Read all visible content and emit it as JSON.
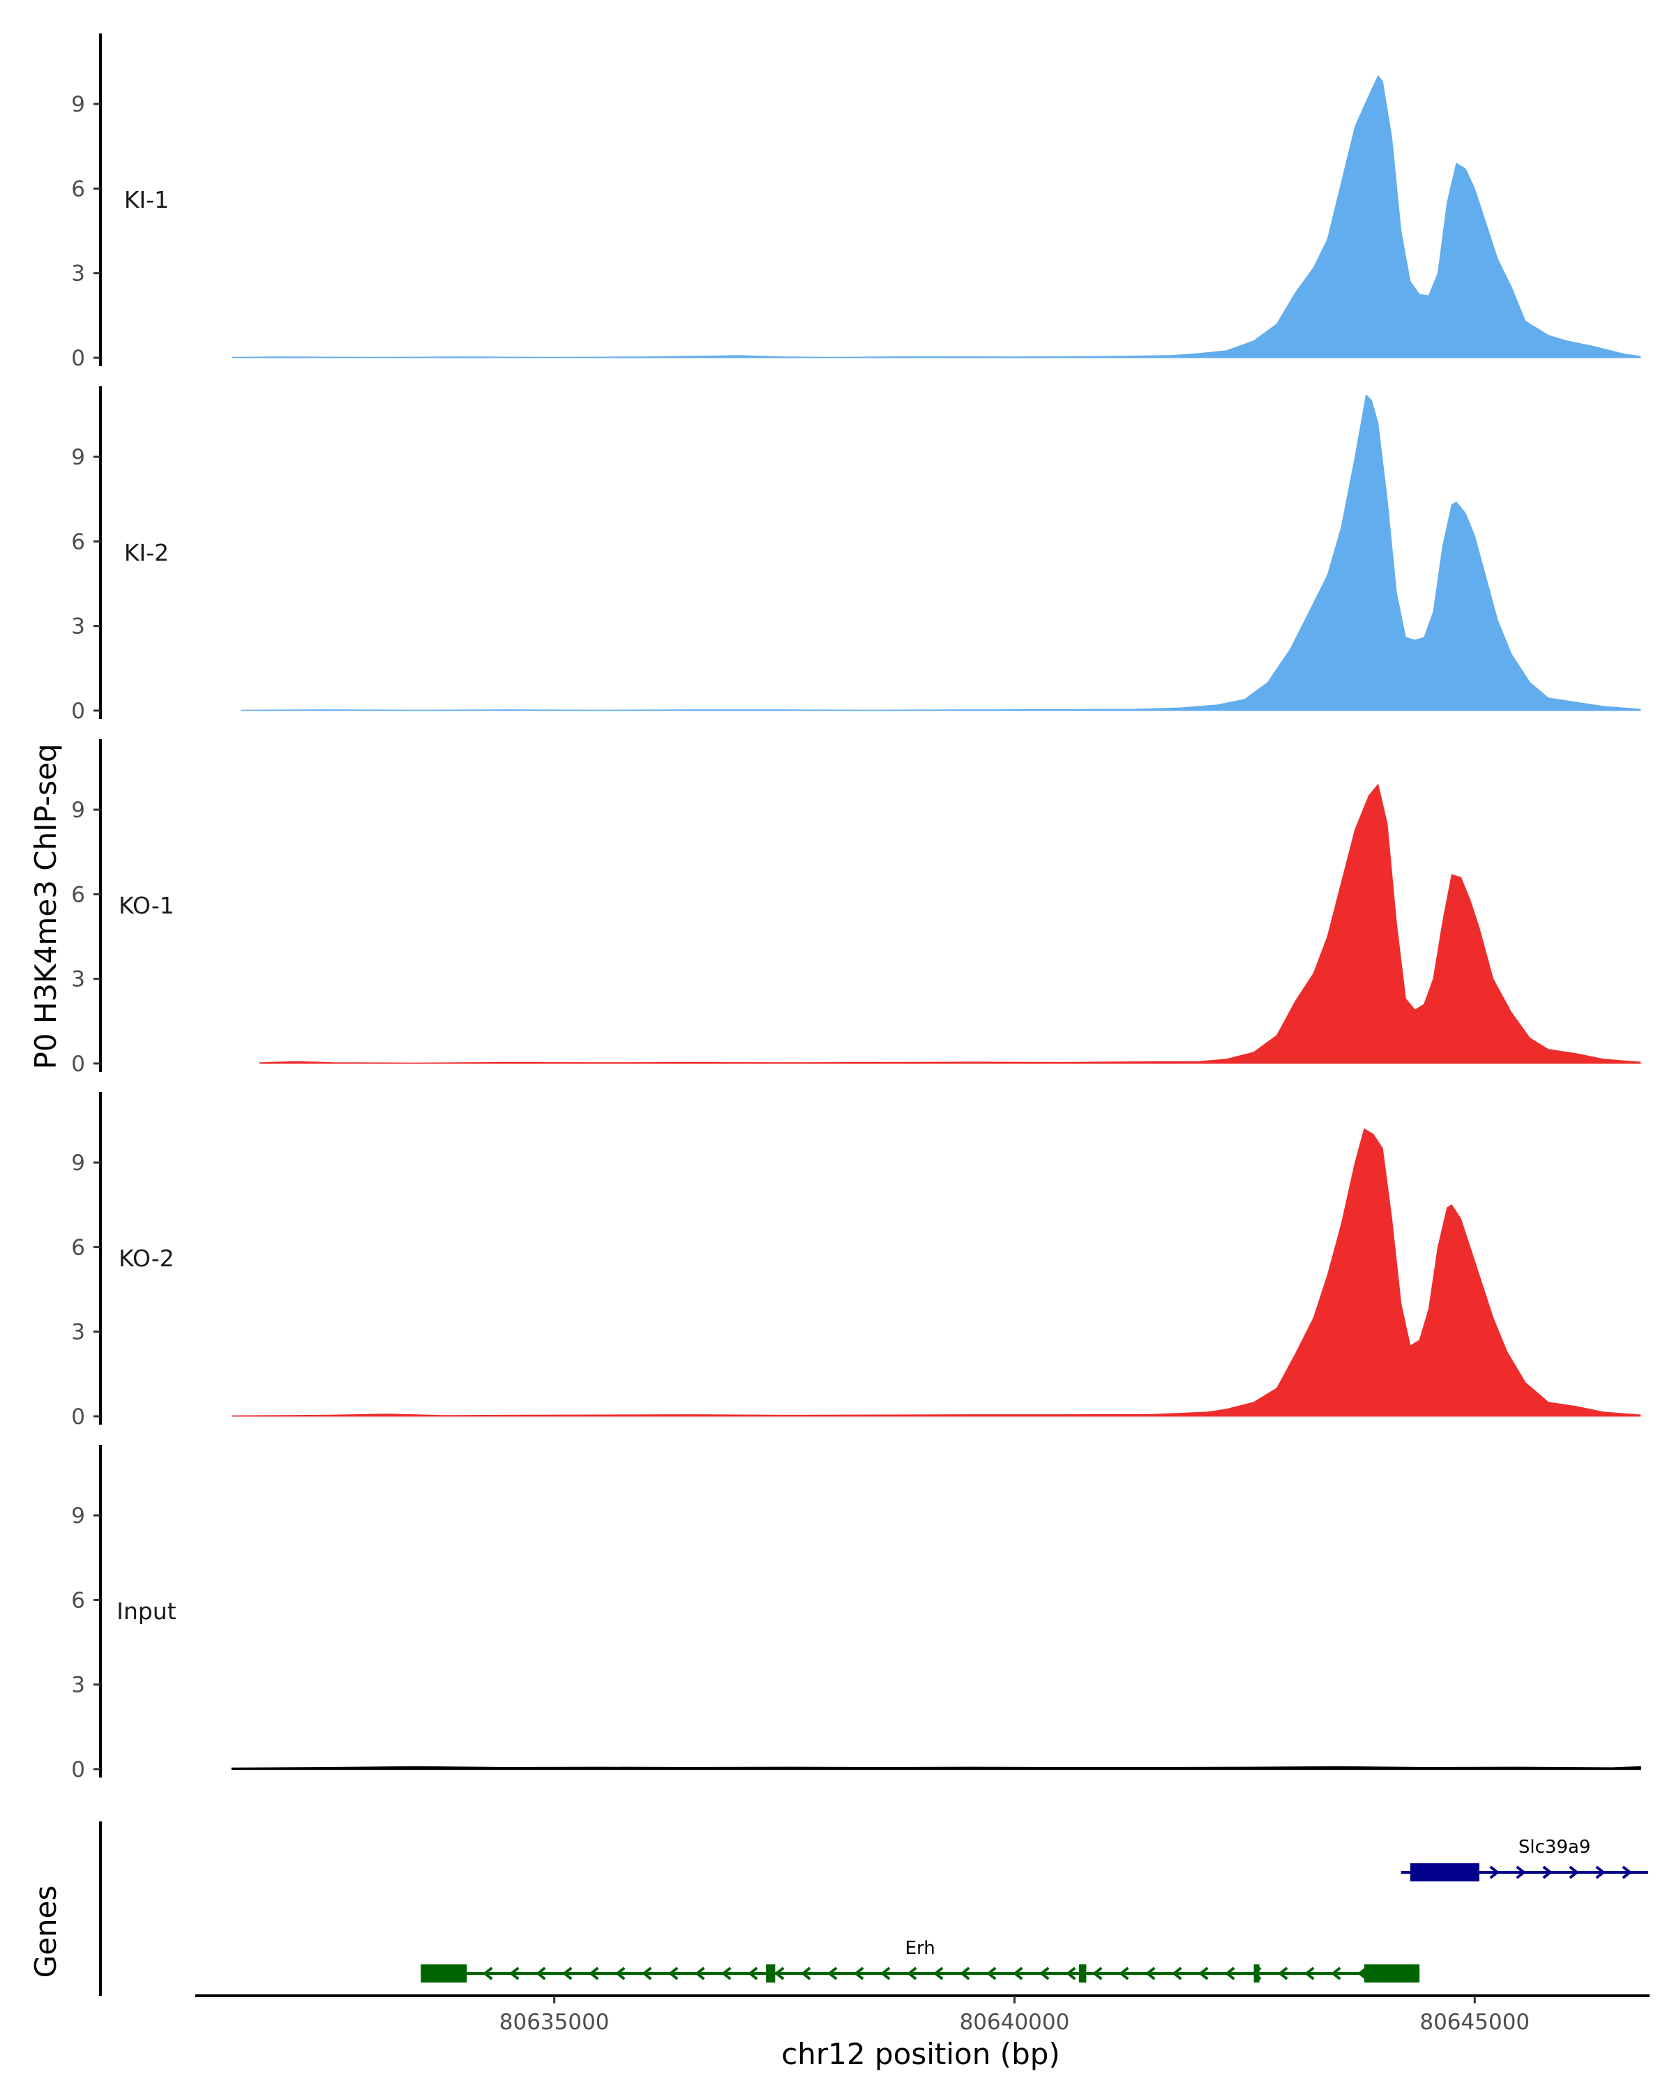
{
  "chart_data": {
    "type": "area",
    "title": "",
    "xlabel": "chr12 position (bp)",
    "ylabel": "P0 H3K4me3 ChIP-seq",
    "genes_label": "Genes",
    "xlim": [
      80631100,
      80646900
    ],
    "ylim": [
      0,
      11.5
    ],
    "x_ticks": [
      80635000,
      80640000,
      80645000
    ],
    "x_tick_labels": [
      "80635000",
      "80640000",
      "80645000"
    ],
    "y_ticks": [
      0,
      3,
      6,
      9
    ],
    "y_tick_labels": [
      "0",
      "3",
      "6",
      "9"
    ],
    "colors": {
      "KI": "#62aded",
      "KO": "#ee2c2c",
      "Input": "#000000",
      "gene_minus": "#006400",
      "gene_plus": "#00008b",
      "axis": "#000000"
    },
    "series": [
      {
        "name": "KI-1",
        "color": "#62aded",
        "points": [
          [
            80631500,
            0.02
          ],
          [
            80632000,
            0.03
          ],
          [
            80633000,
            0.02
          ],
          [
            80634000,
            0.03
          ],
          [
            80635000,
            0.02
          ],
          [
            80636000,
            0.03
          ],
          [
            80637000,
            0.08
          ],
          [
            80637500,
            0.03
          ],
          [
            80638000,
            0.02
          ],
          [
            80639000,
            0.04
          ],
          [
            80640000,
            0.03
          ],
          [
            80641000,
            0.05
          ],
          [
            80641700,
            0.08
          ],
          [
            80642000,
            0.15
          ],
          [
            80642300,
            0.25
          ],
          [
            80642600,
            0.6
          ],
          [
            80642850,
            1.2
          ],
          [
            80643050,
            2.3
          ],
          [
            80643250,
            3.2
          ],
          [
            80643400,
            4.2
          ],
          [
            80643550,
            6.2
          ],
          [
            80643700,
            8.2
          ],
          [
            80643850,
            9.3
          ],
          [
            80643950,
            10.0
          ],
          [
            80644000,
            9.8
          ],
          [
            80644100,
            7.8
          ],
          [
            80644200,
            4.5
          ],
          [
            80644300,
            2.7
          ],
          [
            80644400,
            2.25
          ],
          [
            80644500,
            2.2
          ],
          [
            80644600,
            3.0
          ],
          [
            80644700,
            5.5
          ],
          [
            80644800,
            6.9
          ],
          [
            80644900,
            6.7
          ],
          [
            80645000,
            6.0
          ],
          [
            80645100,
            5.0
          ],
          [
            80645250,
            3.5
          ],
          [
            80645400,
            2.5
          ],
          [
            80645550,
            1.3
          ],
          [
            80645800,
            0.8
          ],
          [
            80646000,
            0.6
          ],
          [
            80646300,
            0.4
          ],
          [
            80646600,
            0.15
          ],
          [
            80646800,
            0.05
          ]
        ]
      },
      {
        "name": "KI-2",
        "color": "#62aded",
        "points": [
          [
            80631600,
            0.02
          ],
          [
            80632500,
            0.03
          ],
          [
            80633500,
            0.02
          ],
          [
            80634500,
            0.03
          ],
          [
            80635500,
            0.02
          ],
          [
            80636500,
            0.03
          ],
          [
            80637500,
            0.03
          ],
          [
            80638500,
            0.02
          ],
          [
            80639500,
            0.03
          ],
          [
            80640500,
            0.04
          ],
          [
            80641300,
            0.05
          ],
          [
            80641800,
            0.1
          ],
          [
            80642200,
            0.2
          ],
          [
            80642500,
            0.4
          ],
          [
            80642750,
            1.0
          ],
          [
            80643000,
            2.2
          ],
          [
            80643200,
            3.5
          ],
          [
            80643400,
            4.8
          ],
          [
            80643550,
            6.5
          ],
          [
            80643700,
            9.0
          ],
          [
            80643820,
            11.2
          ],
          [
            80643880,
            11.0
          ],
          [
            80643950,
            10.2
          ],
          [
            80644050,
            7.5
          ],
          [
            80644150,
            4.2
          ],
          [
            80644250,
            2.6
          ],
          [
            80644350,
            2.5
          ],
          [
            80644450,
            2.6
          ],
          [
            80644550,
            3.5
          ],
          [
            80644650,
            5.8
          ],
          [
            80644750,
            7.3
          ],
          [
            80644800,
            7.4
          ],
          [
            80644900,
            7.0
          ],
          [
            80645000,
            6.2
          ],
          [
            80645100,
            5.0
          ],
          [
            80645250,
            3.2
          ],
          [
            80645400,
            2.0
          ],
          [
            80645600,
            1.0
          ],
          [
            80645800,
            0.45
          ],
          [
            80646100,
            0.3
          ],
          [
            80646400,
            0.15
          ],
          [
            80646800,
            0.05
          ]
        ]
      },
      {
        "name": "KO-1",
        "color": "#ee2c2c",
        "points": [
          [
            80631800,
            0.03
          ],
          [
            80632200,
            0.07
          ],
          [
            80632600,
            0.03
          ],
          [
            80633500,
            0.02
          ],
          [
            80634500,
            0.04
          ],
          [
            80635500,
            0.03
          ],
          [
            80636500,
            0.04
          ],
          [
            80637500,
            0.03
          ],
          [
            80638500,
            0.04
          ],
          [
            80639500,
            0.05
          ],
          [
            80640500,
            0.04
          ],
          [
            80641300,
            0.06
          ],
          [
            80642000,
            0.07
          ],
          [
            80642300,
            0.15
          ],
          [
            80642600,
            0.4
          ],
          [
            80642850,
            1.0
          ],
          [
            80643050,
            2.2
          ],
          [
            80643250,
            3.2
          ],
          [
            80643400,
            4.5
          ],
          [
            80643550,
            6.4
          ],
          [
            80643700,
            8.3
          ],
          [
            80643850,
            9.5
          ],
          [
            80643950,
            9.9
          ],
          [
            80644050,
            8.5
          ],
          [
            80644150,
            5.0
          ],
          [
            80644250,
            2.3
          ],
          [
            80644350,
            1.9
          ],
          [
            80644450,
            2.1
          ],
          [
            80644550,
            3.0
          ],
          [
            80644650,
            5.0
          ],
          [
            80644750,
            6.7
          ],
          [
            80644850,
            6.6
          ],
          [
            80644950,
            5.8
          ],
          [
            80645050,
            4.8
          ],
          [
            80645200,
            3.0
          ],
          [
            80645400,
            1.8
          ],
          [
            80645600,
            0.9
          ],
          [
            80645800,
            0.5
          ],
          [
            80646100,
            0.35
          ],
          [
            80646400,
            0.15
          ],
          [
            80646800,
            0.05
          ]
        ]
      },
      {
        "name": "KO-2",
        "color": "#ee2c2c",
        "points": [
          [
            80631500,
            0.02
          ],
          [
            80632500,
            0.04
          ],
          [
            80633200,
            0.08
          ],
          [
            80633800,
            0.03
          ],
          [
            80634500,
            0.04
          ],
          [
            80635500,
            0.05
          ],
          [
            80636500,
            0.06
          ],
          [
            80637500,
            0.04
          ],
          [
            80638500,
            0.05
          ],
          [
            80639500,
            0.06
          ],
          [
            80640500,
            0.06
          ],
          [
            80641500,
            0.07
          ],
          [
            80642100,
            0.15
          ],
          [
            80642300,
            0.25
          ],
          [
            80642600,
            0.5
          ],
          [
            80642850,
            1.0
          ],
          [
            80643050,
            2.2
          ],
          [
            80643250,
            3.5
          ],
          [
            80643400,
            5.0
          ],
          [
            80643550,
            6.8
          ],
          [
            80643700,
            9.0
          ],
          [
            80643800,
            10.2
          ],
          [
            80643900,
            10.0
          ],
          [
            80644000,
            9.5
          ],
          [
            80644100,
            7.0
          ],
          [
            80644200,
            4.0
          ],
          [
            80644300,
            2.5
          ],
          [
            80644400,
            2.7
          ],
          [
            80644500,
            3.8
          ],
          [
            80644600,
            6.0
          ],
          [
            80644700,
            7.4
          ],
          [
            80644750,
            7.5
          ],
          [
            80644850,
            7.0
          ],
          [
            80644950,
            6.0
          ],
          [
            80645050,
            5.0
          ],
          [
            80645200,
            3.5
          ],
          [
            80645350,
            2.3
          ],
          [
            80645550,
            1.2
          ],
          [
            80645800,
            0.5
          ],
          [
            80646100,
            0.35
          ],
          [
            80646400,
            0.15
          ],
          [
            80646800,
            0.05
          ]
        ]
      },
      {
        "name": "Input",
        "color": "#000000",
        "points": [
          [
            80631500,
            0.03
          ],
          [
            80632500,
            0.05
          ],
          [
            80633500,
            0.08
          ],
          [
            80634500,
            0.05
          ],
          [
            80635500,
            0.06
          ],
          [
            80636500,
            0.05
          ],
          [
            80637500,
            0.06
          ],
          [
            80638500,
            0.05
          ],
          [
            80639500,
            0.06
          ],
          [
            80640500,
            0.05
          ],
          [
            80641500,
            0.05
          ],
          [
            80642500,
            0.06
          ],
          [
            80643500,
            0.08
          ],
          [
            80644500,
            0.05
          ],
          [
            80645500,
            0.06
          ],
          [
            80646500,
            0.04
          ],
          [
            80646800,
            0.08
          ]
        ]
      }
    ],
    "genes": [
      {
        "name": "Slc39a9",
        "strand": "+",
        "color": "#00008b",
        "row": 0,
        "start": 80644200,
        "end": 80646900,
        "exons": [
          [
            80644300,
            80645050
          ]
        ]
      },
      {
        "name": "Erh",
        "strand": "-",
        "color": "#006400",
        "row": 1,
        "start": 80633550,
        "end": 80644400,
        "exons": [
          [
            80633550,
            80634050
          ],
          [
            80637300,
            80637400
          ],
          [
            80640700,
            80640780
          ],
          [
            80642600,
            80642650
          ],
          [
            80643800,
            80644400
          ]
        ]
      }
    ]
  }
}
